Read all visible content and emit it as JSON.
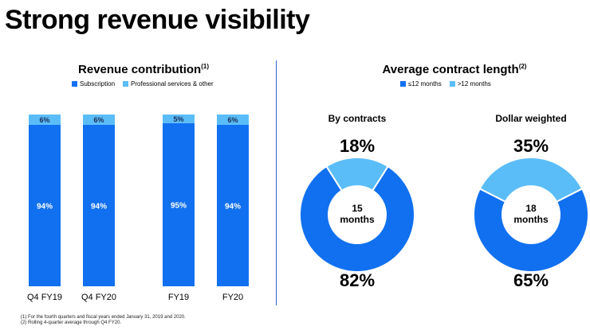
{
  "title": "Strong revenue visibility",
  "colors": {
    "primary": "#1170f0",
    "secondary": "#5bbdf8",
    "divider": "#2f63d4"
  },
  "left": {
    "title": "Revenue contribution",
    "title_note": "(1)",
    "legend": [
      "Subscription",
      "Professional services & other"
    ]
  },
  "right": {
    "title": "Average contract length",
    "title_note": "(2)",
    "legend": [
      "≤12 months",
      ">12 months"
    ]
  },
  "chart_data": [
    {
      "type": "bar",
      "stacked": true,
      "percent": true,
      "title": "Revenue contribution",
      "categories": [
        "Q4 FY19",
        "Q4 FY20",
        "FY19",
        "FY20"
      ],
      "series": [
        {
          "name": "Subscription",
          "values": [
            94,
            94,
            95,
            94
          ],
          "labels": [
            "94%",
            "94%",
            "95%",
            "94%"
          ]
        },
        {
          "name": "Professional services & other",
          "values": [
            6,
            6,
            5,
            6
          ],
          "labels": [
            "6%",
            "6%",
            "5%",
            "6%"
          ]
        }
      ],
      "ylim": [
        0,
        100
      ]
    },
    {
      "type": "pie",
      "donut": true,
      "title": "By contracts",
      "center": [
        "15",
        "months"
      ],
      "slices": [
        {
          "name": "≤12 months",
          "value": 82,
          "label": "82%"
        },
        {
          "name": ">12 months",
          "value": 18,
          "label": "18%"
        }
      ]
    },
    {
      "type": "pie",
      "donut": true,
      "title": "Dollar weighted",
      "center": [
        "18",
        "months"
      ],
      "slices": [
        {
          "name": "≤12 months",
          "value": 65,
          "label": "65%"
        },
        {
          "name": ">12 months",
          "value": 35,
          "label": "35%"
        }
      ]
    }
  ],
  "footnotes": [
    "(1) For the fourth quarters and fiscal years ended January 31, 2019 and 2020.",
    "(2) Rolling 4-quarter average through Q4 FY20."
  ]
}
